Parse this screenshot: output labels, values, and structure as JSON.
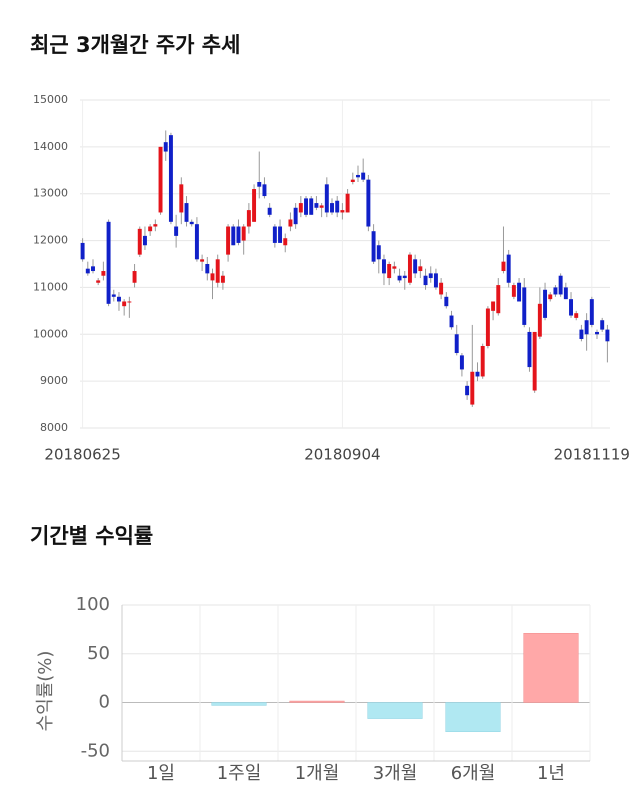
{
  "chart_data": [
    {
      "type": "candlestick",
      "title": "최근 3개월간 주가 추세",
      "categories": [
        "20180625",
        null,
        null,
        null,
        null,
        null,
        null,
        null,
        null,
        null,
        null,
        null,
        null,
        null,
        null,
        null,
        null,
        null,
        null,
        null,
        null,
        null,
        null,
        null,
        null,
        null,
        null,
        null,
        null,
        null,
        null,
        null,
        null,
        null,
        null,
        null,
        null,
        null,
        null,
        null,
        null,
        null,
        null,
        null,
        null,
        null,
        null,
        null,
        null,
        null,
        "20180904",
        null,
        null,
        null,
        null,
        null,
        null,
        null,
        null,
        null,
        null,
        null,
        null,
        null,
        null,
        null,
        null,
        null,
        null,
        null,
        null,
        null,
        null,
        null,
        null,
        null,
        null,
        null,
        null,
        null,
        null,
        null,
        null,
        null,
        null,
        null,
        null,
        null,
        null,
        null,
        null,
        null,
        null,
        null,
        null,
        null,
        null,
        null,
        "20181119",
        null,
        null,
        null
      ],
      "open": [
        11950,
        11400,
        11450,
        11100,
        11250,
        12400,
        10850,
        10800,
        10600,
        10700,
        11100,
        11700,
        12100,
        12200,
        12300,
        12600,
        14100,
        14250,
        12300,
        12600,
        12800,
        12400,
        12350,
        11550,
        11500,
        11150,
        11100,
        11100,
        11700,
        12300,
        12300,
        12000,
        12300,
        12400,
        13250,
        13200,
        12700,
        12300,
        12300,
        11900,
        12300,
        12700,
        12600,
        12900,
        12900,
        12800,
        12700,
        13200,
        12800,
        12850,
        12600,
        12600,
        13250,
        13400,
        13450,
        13300,
        12200,
        11900,
        11600,
        11200,
        11400,
        11250,
        11250,
        11100,
        11600,
        11350,
        11250,
        11300,
        11300,
        10850,
        10800,
        10400,
        10000,
        9550,
        8900,
        8500,
        9200,
        9100,
        9750,
        10500,
        10450,
        11350,
        11700,
        10800,
        11100,
        11000,
        10050,
        8800,
        9950,
        10950,
        10750,
        11000,
        11250,
        11000,
        10750,
        10350,
        10100,
        10300,
        10750,
        10050,
        10300,
        10100
      ],
      "high": [
        12050,
        11550,
        11600,
        11200,
        11550,
        12450,
        10950,
        10900,
        10750,
        10800,
        11500,
        12300,
        12300,
        12350,
        12450,
        14000,
        14350,
        14300,
        12550,
        13350,
        12950,
        12450,
        12500,
        11700,
        11650,
        11400,
        11700,
        11350,
        12350,
        12350,
        12450,
        12350,
        12800,
        13200,
        13900,
        13350,
        12800,
        12350,
        12450,
        12150,
        12600,
        12800,
        12950,
        12950,
        12950,
        12950,
        12800,
        13350,
        12900,
        12950,
        12800,
        13100,
        13450,
        13600,
        13750,
        13400,
        12350,
        12000,
        11700,
        11550,
        11550,
        11400,
        11350,
        11750,
        11700,
        11600,
        11400,
        11450,
        11400,
        11200,
        10900,
        10500,
        10200,
        9600,
        9000,
        10200,
        9400,
        9800,
        10600,
        10700,
        11200,
        12300,
        11800,
        11100,
        11200,
        11200,
        10150,
        10050,
        11000,
        11100,
        10900,
        11050,
        11300,
        11100,
        10900,
        10500,
        10200,
        10450,
        10800,
        10100,
        10350,
        10200
      ],
      "low": [
        11550,
        11250,
        11300,
        11050,
        11150,
        10600,
        10700,
        10500,
        10400,
        10350,
        11000,
        11650,
        11800,
        12100,
        12200,
        12550,
        13700,
        12350,
        11850,
        12350,
        12300,
        12300,
        11550,
        11350,
        11150,
        10750,
        11000,
        10950,
        11550,
        11900,
        11900,
        11700,
        12150,
        12400,
        12900,
        12900,
        12500,
        11850,
        11950,
        11750,
        12200,
        12250,
        12500,
        12500,
        12550,
        12650,
        12500,
        12500,
        12550,
        12500,
        12450,
        12600,
        13200,
        13250,
        13250,
        12200,
        11500,
        11300,
        11050,
        11050,
        11300,
        11100,
        10950,
        11050,
        11200,
        11200,
        10950,
        11100,
        10950,
        10750,
        10550,
        10100,
        9550,
        9100,
        8600,
        8450,
        9000,
        9050,
        9700,
        10300,
        10400,
        11300,
        11000,
        10750,
        10700,
        10150,
        9200,
        8750,
        9900,
        10300,
        10700,
        10800,
        10800,
        10750,
        10350,
        10300,
        9850,
        9650,
        10150,
        9900,
        10050,
        9400
      ],
      "close": [
        11600,
        11300,
        11350,
        11150,
        11350,
        10650,
        10800,
        10700,
        10700,
        10700,
        11350,
        12250,
        11900,
        12300,
        12350,
        14000,
        13900,
        12400,
        12100,
        13200,
        12400,
        12350,
        11600,
        11600,
        11300,
        11300,
        11600,
        11250,
        12300,
        11900,
        11950,
        12300,
        12650,
        13100,
        13150,
        12950,
        12550,
        11950,
        11950,
        12050,
        12450,
        12350,
        12800,
        12550,
        12550,
        12700,
        12750,
        12600,
        12600,
        12600,
        12650,
        13000,
        13300,
        13350,
        13300,
        12300,
        11550,
        11600,
        11300,
        11500,
        11450,
        11150,
        11200,
        11700,
        11300,
        11450,
        11050,
        11200,
        11000,
        11100,
        10600,
        10150,
        9600,
        9250,
        8700,
        9200,
        9100,
        9750,
        10550,
        10700,
        11050,
        11550,
        11100,
        11050,
        10700,
        10200,
        9300,
        10050,
        10650,
        10350,
        10850,
        10850,
        10850,
        10750,
        10400,
        10450,
        9900,
        10000,
        10200,
        10000,
        10100,
        9850
      ],
      "up_color": "#e4141b",
      "down_color": "#1020c8",
      "ylim": [
        8000,
        15000
      ],
      "yticks": [
        8000,
        9000,
        10000,
        11000,
        12000,
        13000,
        14000,
        15000
      ],
      "grid": true
    },
    {
      "type": "bar",
      "title": "기간별 수익률",
      "y_label": "수익률(%)",
      "categories": [
        "1일",
        "1주일",
        "1개월",
        "3개월",
        "6개월",
        "1년"
      ],
      "values": [
        0,
        -3,
        1.5,
        -16.5,
        -30,
        71
      ],
      "positive_color": "#ffa8a8",
      "negative_color": "#b0e8f2",
      "ylim": [
        -60,
        100
      ],
      "yticks": [
        -50,
        0,
        50,
        100
      ],
      "grid": true
    }
  ]
}
